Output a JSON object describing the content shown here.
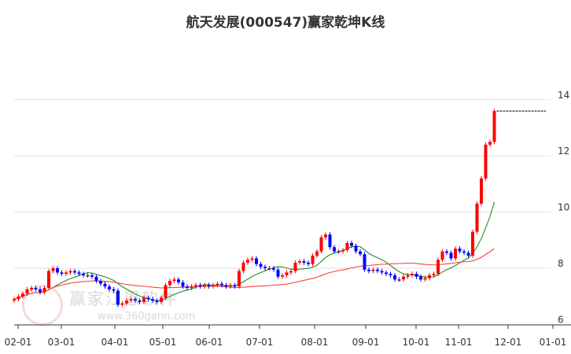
{
  "chart_data": {
    "type": "candlestick",
    "title": "航天发展(000547)赢家乾坤K线",
    "xlabel": "",
    "ylabel": "",
    "ylim": [
      6,
      14.8
    ],
    "y_ticks": [
      "6",
      "8",
      "10",
      "12",
      "14"
    ],
    "x_ticks": [
      "02-01",
      "03-01",
      "04-01",
      "05-01",
      "06-01",
      "07-01",
      "08-01",
      "09-01",
      "10-01",
      "11-01",
      "12-01",
      "01-01"
    ],
    "grid": true,
    "ma_periods": [
      10,
      40
    ],
    "ma_colors": [
      "#228b22",
      "#ff4040"
    ],
    "up_color": "#ff0000",
    "down_color": "#0000ff",
    "flat_color": "#800080",
    "last_price": 13.6,
    "closes": [
      6.9,
      7.0,
      7.1,
      7.25,
      7.3,
      7.25,
      7.15,
      7.3,
      7.9,
      8.0,
      7.85,
      7.8,
      7.85,
      7.9,
      7.85,
      7.8,
      7.75,
      7.75,
      7.7,
      7.55,
      7.45,
      7.35,
      7.25,
      7.2,
      6.7,
      6.75,
      6.85,
      6.9,
      6.85,
      6.8,
      6.95,
      6.9,
      6.85,
      6.8,
      6.95,
      7.4,
      7.55,
      7.6,
      7.5,
      7.35,
      7.3,
      7.35,
      7.4,
      7.35,
      7.4,
      7.35,
      7.4,
      7.45,
      7.4,
      7.35,
      7.4,
      7.35,
      7.9,
      8.2,
      8.3,
      8.35,
      8.15,
      8.05,
      8.0,
      8.0,
      7.95,
      7.7,
      7.75,
      7.85,
      7.9,
      8.2,
      8.25,
      8.2,
      8.15,
      8.45,
      8.6,
      9.1,
      9.2,
      8.75,
      8.6,
      8.6,
      8.65,
      8.9,
      8.8,
      8.6,
      8.5,
      7.95,
      7.9,
      7.95,
      7.9,
      7.85,
      7.8,
      7.75,
      7.6,
      7.6,
      7.7,
      7.75,
      7.8,
      7.7,
      7.6,
      7.65,
      7.75,
      7.8,
      8.3,
      8.6,
      8.55,
      8.35,
      8.7,
      8.6,
      8.55,
      8.45,
      9.3,
      10.3,
      11.2,
      12.4,
      12.5,
      13.6
    ]
  },
  "watermark": {
    "brand": "赢家江恩软件",
    "site": "www.360gann.com",
    "seal": "江赢恩家"
  }
}
